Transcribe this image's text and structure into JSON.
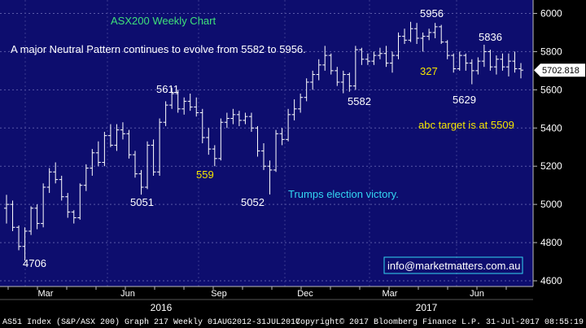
{
  "chart_data": {
    "type": "ohlc",
    "title": "ASX200 Weekly Chart",
    "subtitle": "A major Neutral Pattern continues to evolve from 5582 to 5956.",
    "ylim": [
      4600,
      6100
    ],
    "yticks": [
      4600,
      4800,
      5000,
      5200,
      5400,
      5600,
      5800,
      6000
    ],
    "last_price": "5702.818",
    "x_months": [
      "Mar",
      "Jun",
      "Sep",
      "Dec",
      "Mar",
      "Jun"
    ],
    "x_years": [
      "2016",
      "2017"
    ],
    "annotations": [
      {
        "text": "5956",
        "color": "#ffffff"
      },
      {
        "text": "5836",
        "color": "#ffffff"
      },
      {
        "text": "327",
        "color": "#f5e500"
      },
      {
        "text": "5582",
        "color": "#ffffff"
      },
      {
        "text": "5629",
        "color": "#ffffff"
      },
      {
        "text": "abc target is at 5509",
        "color": "#f5e500"
      },
      {
        "text": "5611",
        "color": "#ffffff"
      },
      {
        "text": "559",
        "color": "#f5e500"
      },
      {
        "text": "5051",
        "color": "#ffffff"
      },
      {
        "text": "5052",
        "color": "#ffffff"
      },
      {
        "text": "Trumps election victory.",
        "color": "#33d6f2"
      },
      {
        "text": "4706",
        "color": "#ffffff"
      }
    ],
    "watermark": "info@marketmatters.com.au",
    "footer_left": "AS51 Index (S&P/ASX 200) Graph 217  Weekly 01AUG2012-31JUL2017",
    "footer_right": "Copyright© 2017 Bloomberg Finance L.P.    31-Jul-2017 08:55:19",
    "bars": [
      [
        4980,
        5050,
        4900,
        5000
      ],
      [
        5000,
        5020,
        4860,
        4880
      ],
      [
        4880,
        4890,
        4760,
        4780
      ],
      [
        4780,
        4880,
        4706,
        4860
      ],
      [
        4860,
        4990,
        4840,
        4980
      ],
      [
        4980,
        5000,
        4870,
        4900
      ],
      [
        4900,
        5110,
        4880,
        5090
      ],
      [
        5090,
        5190,
        5060,
        5170
      ],
      [
        5170,
        5220,
        5110,
        5130
      ],
      [
        5130,
        5150,
        5020,
        5040
      ],
      [
        5040,
        5060,
        4930,
        4960
      ],
      [
        4960,
        4970,
        4900,
        4930
      ],
      [
        4930,
        5110,
        4920,
        5100
      ],
      [
        5100,
        5210,
        5070,
        5190
      ],
      [
        5190,
        5290,
        5150,
        5270
      ],
      [
        5270,
        5330,
        5200,
        5220
      ],
      [
        5220,
        5380,
        5200,
        5360
      ],
      [
        5360,
        5420,
        5300,
        5310
      ],
      [
        5310,
        5420,
        5280,
        5390
      ],
      [
        5390,
        5430,
        5340,
        5370
      ],
      [
        5370,
        5390,
        5240,
        5260
      ],
      [
        5260,
        5280,
        5140,
        5160
      ],
      [
        5160,
        5180,
        5051,
        5090
      ],
      [
        5090,
        5330,
        5080,
        5310
      ],
      [
        5310,
        5340,
        5150,
        5170
      ],
      [
        5170,
        5450,
        5150,
        5430
      ],
      [
        5430,
        5540,
        5410,
        5520
      ],
      [
        5520,
        5611,
        5500,
        5580
      ],
      [
        5580,
        5600,
        5480,
        5500
      ],
      [
        5500,
        5560,
        5470,
        5540
      ],
      [
        5540,
        5580,
        5490,
        5510
      ],
      [
        5510,
        5560,
        5460,
        5480
      ],
      [
        5480,
        5500,
        5320,
        5350
      ],
      [
        5350,
        5400,
        5260,
        5290
      ],
      [
        5290,
        5310,
        5200,
        5240
      ],
      [
        5240,
        5450,
        5230,
        5430
      ],
      [
        5430,
        5480,
        5400,
        5450
      ],
      [
        5450,
        5500,
        5420,
        5470
      ],
      [
        5470,
        5490,
        5410,
        5440
      ],
      [
        5440,
        5480,
        5420,
        5460
      ],
      [
        5460,
        5480,
        5380,
        5400
      ],
      [
        5400,
        5410,
        5250,
        5280
      ],
      [
        5280,
        5320,
        5180,
        5200
      ],
      [
        5200,
        5230,
        5052,
        5180
      ],
      [
        5180,
        5390,
        5170,
        5370
      ],
      [
        5370,
        5400,
        5310,
        5340
      ],
      [
        5340,
        5500,
        5330,
        5470
      ],
      [
        5470,
        5550,
        5440,
        5500
      ],
      [
        5500,
        5580,
        5480,
        5560
      ],
      [
        5560,
        5660,
        5540,
        5640
      ],
      [
        5640,
        5700,
        5600,
        5680
      ],
      [
        5680,
        5760,
        5650,
        5730
      ],
      [
        5730,
        5830,
        5700,
        5780
      ],
      [
        5780,
        5790,
        5680,
        5700
      ],
      [
        5700,
        5720,
        5620,
        5640
      ],
      [
        5640,
        5700,
        5582,
        5680
      ],
      [
        5680,
        5690,
        5590,
        5620
      ],
      [
        5620,
        5830,
        5600,
        5810
      ],
      [
        5810,
        5820,
        5730,
        5760
      ],
      [
        5760,
        5790,
        5730,
        5750
      ],
      [
        5750,
        5800,
        5730,
        5780
      ],
      [
        5780,
        5820,
        5760,
        5790
      ],
      [
        5790,
        5830,
        5720,
        5740
      ],
      [
        5740,
        5800,
        5690,
        5780
      ],
      [
        5780,
        5900,
        5760,
        5880
      ],
      [
        5880,
        5920,
        5840,
        5860
      ],
      [
        5860,
        5956,
        5850,
        5920
      ],
      [
        5920,
        5950,
        5840,
        5870
      ],
      [
        5870,
        5900,
        5800,
        5880
      ],
      [
        5880,
        5920,
        5860,
        5900
      ],
      [
        5900,
        5950,
        5870,
        5930
      ],
      [
        5930,
        5940,
        5840,
        5850
      ],
      [
        5850,
        5860,
        5760,
        5780
      ],
      [
        5780,
        5790,
        5690,
        5710
      ],
      [
        5710,
        5800,
        5700,
        5780
      ],
      [
        5780,
        5790,
        5700,
        5740
      ],
      [
        5740,
        5760,
        5629,
        5700
      ],
      [
        5700,
        5770,
        5680,
        5750
      ],
      [
        5750,
        5836,
        5720,
        5800
      ],
      [
        5800,
        5810,
        5700,
        5720
      ],
      [
        5720,
        5780,
        5680,
        5760
      ],
      [
        5760,
        5790,
        5700,
        5720
      ],
      [
        5720,
        5790,
        5670,
        5750
      ],
      [
        5750,
        5800,
        5690,
        5710
      ],
      [
        5710,
        5740,
        5660,
        5703
      ]
    ]
  }
}
